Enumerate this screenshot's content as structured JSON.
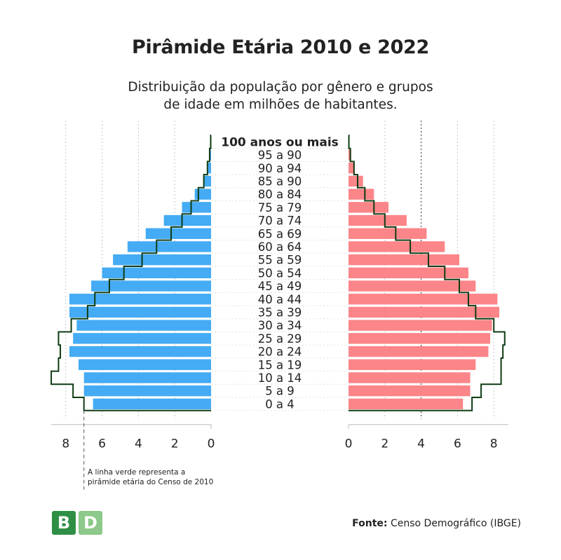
{
  "title": "Pirâmide Etária 2010 e 2022",
  "subtitle_line1": "Distribuição da população por gênero e grupos",
  "subtitle_line2": "de idade em milhões de habitantes.",
  "note_line1": "A linha verde representa a",
  "note_line2": "pirâmide etária do Censo de 2010",
  "source_label": "Fonte:",
  "source_text": "Censo Demográfico (IBGE)",
  "logo": {
    "letter1": "B",
    "letter2": "D"
  },
  "colors": {
    "left_bars": "#45abf4",
    "right_bars": "#fb8588",
    "outline_2010": "#0e3c14",
    "logo_dark": "#2f8f46",
    "logo_light": "#8cc98a"
  },
  "chart_data": {
    "type": "bar",
    "orientation": "horizontal-pyramid",
    "categories": [
      "100 anos ou mais",
      "95 a 90",
      "90 a 94",
      "85 a 90",
      "80 a 84",
      "75 a 79",
      "70 a 74",
      "65 a 69",
      "60 a 64",
      "55 a 59",
      "50 a 54",
      "45 a 49",
      "40 a 44",
      "35 a 39",
      "30 a 34",
      "25 a 29",
      "20 a 24",
      "15 a 19",
      "10 a 14",
      "5 a 9",
      "0 a 4"
    ],
    "left_2022": [
      0.02,
      0.1,
      0.2,
      0.4,
      0.9,
      1.6,
      2.6,
      3.6,
      4.6,
      5.4,
      6.0,
      6.6,
      7.8,
      7.8,
      7.4,
      7.6,
      7.8,
      7.3,
      7.0,
      7.0,
      6.5
    ],
    "right_2022": [
      0.02,
      0.15,
      0.35,
      0.8,
      1.4,
      2.2,
      3.2,
      4.3,
      5.3,
      6.1,
      6.6,
      7.0,
      8.2,
      8.3,
      7.9,
      7.8,
      7.7,
      7.0,
      6.7,
      6.7,
      6.3
    ],
    "left_2010": [
      0.02,
      0.08,
      0.2,
      0.4,
      0.7,
      1.1,
      1.6,
      2.2,
      3.0,
      3.8,
      4.8,
      5.6,
      6.4,
      6.8,
      7.7,
      8.4,
      8.3,
      8.4,
      8.8,
      7.6,
      7.0
    ],
    "right_2010": [
      0.02,
      0.1,
      0.3,
      0.5,
      0.9,
      1.4,
      2.0,
      2.6,
      3.4,
      4.4,
      5.3,
      6.1,
      6.6,
      7.0,
      8.0,
      8.6,
      8.5,
      8.4,
      8.4,
      7.3,
      6.8
    ],
    "x_ticks": [
      8,
      6,
      4,
      2,
      0
    ],
    "x_ticks_right": [
      0,
      2,
      4,
      6,
      8
    ],
    "xlim": [
      0,
      8.8
    ]
  }
}
